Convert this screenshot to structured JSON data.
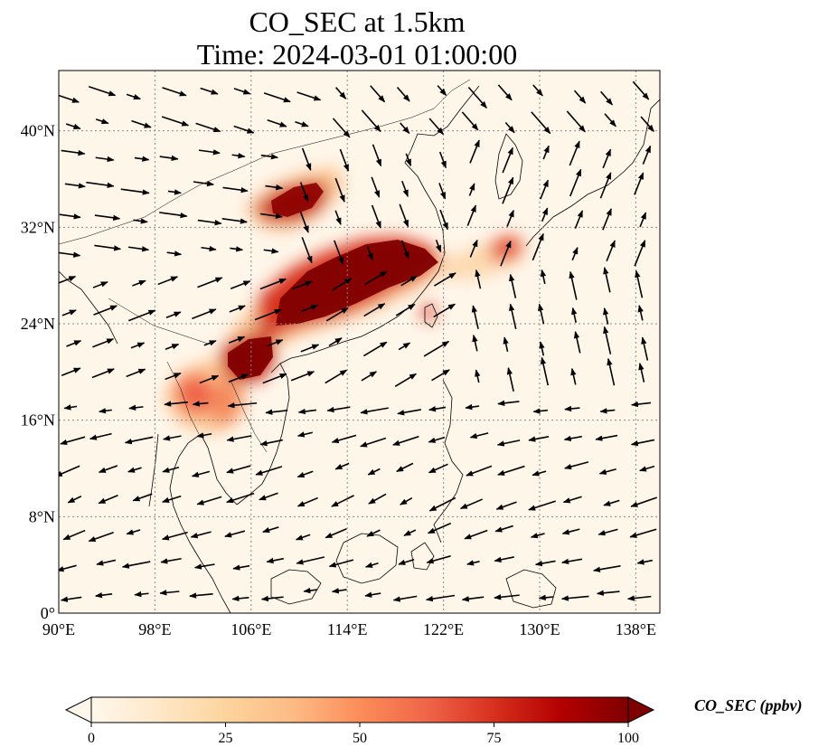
{
  "figure": {
    "title_line1": "CO_SEC at 1.5km",
    "title_line2": "Time: 2024-03-01 01:00:00"
  },
  "map": {
    "lon_range": [
      90,
      140
    ],
    "lat_range": [
      0,
      45
    ],
    "x_ticks": [
      "90°E",
      "98°E",
      "106°E",
      "114°E",
      "122°E",
      "130°E",
      "138°E"
    ],
    "x_tick_values": [
      90,
      98,
      106,
      114,
      122,
      130,
      138
    ],
    "y_ticks": [
      "0°",
      "8°N",
      "16°N",
      "24°N",
      "32°N",
      "40°N"
    ],
    "y_tick_values": [
      0,
      8,
      16,
      24,
      32,
      40
    ],
    "gridlines": "dotted",
    "field": "CO_SEC",
    "units": "ppbv",
    "plumes": [
      {
        "region": "eastern China",
        "lon": 116,
        "lat": 28.5,
        "level": 100
      },
      {
        "region": "southern China / northern Vietnam",
        "lon": 106.5,
        "lat": 21.8,
        "level": 100
      },
      {
        "region": "northern China",
        "lon": 110,
        "lat": 33.5,
        "level": 90
      },
      {
        "region": "Laos / Thailand",
        "lon": 102.5,
        "lat": 18.5,
        "level": 75
      },
      {
        "region": "east of Korea / Japan",
        "lon": 128,
        "lat": 30.5,
        "level": 80
      },
      {
        "region": "Taiwan",
        "lon": 120.5,
        "lat": 25,
        "level": 60
      }
    ],
    "wind_vectors": true
  },
  "colorbar": {
    "label": "CO_SEC (ppbv)",
    "ticks": [
      "0",
      "25",
      "50",
      "75",
      "100"
    ],
    "tick_values": [
      0,
      25,
      50,
      75,
      100
    ],
    "range": [
      0,
      100
    ],
    "colormap": "OrRd",
    "extend": "both",
    "colors": [
      "#fff7ec",
      "#fee8c8",
      "#fdd49e",
      "#fdbb84",
      "#fc8d59",
      "#ef6548",
      "#d7301f",
      "#b30000",
      "#7f0000"
    ]
  }
}
